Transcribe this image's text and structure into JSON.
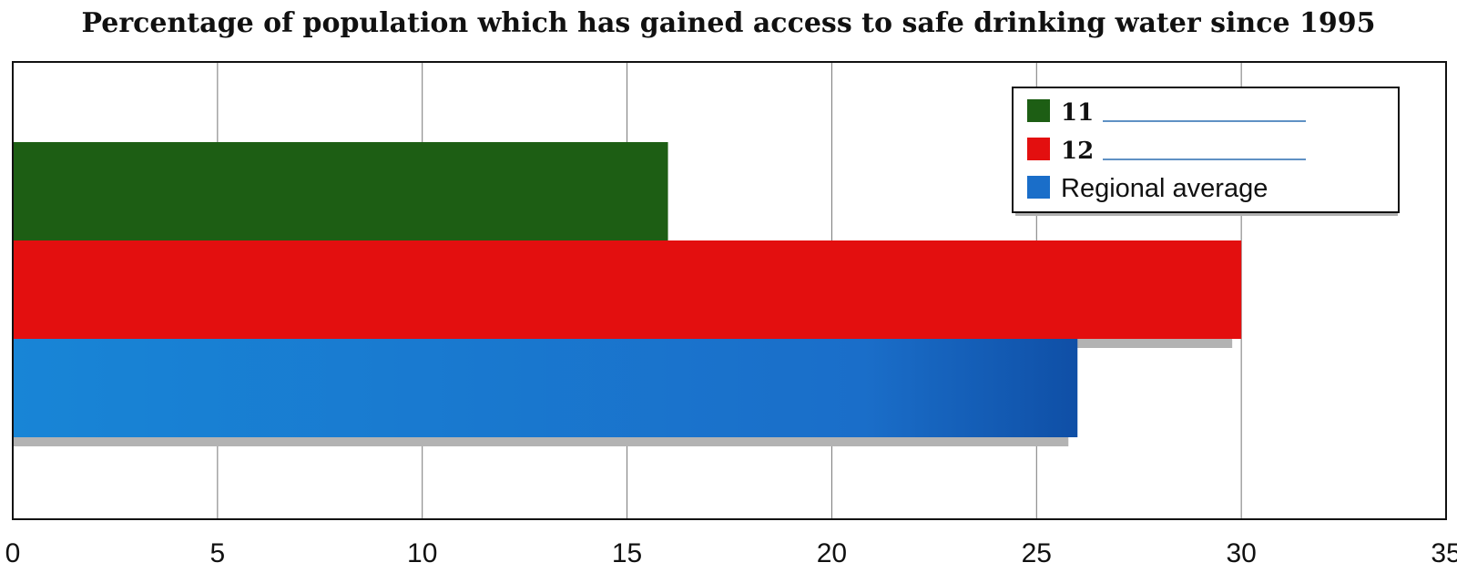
{
  "chart_data": {
    "type": "bar",
    "orientation": "horizontal",
    "title": "Percentage of population which has gained access to safe drinking water since 1995",
    "xlim": [
      0,
      35
    ],
    "xticks": [
      0,
      5,
      10,
      15,
      20,
      25,
      30,
      35
    ],
    "grid": "vertical",
    "legend_position": "top-right",
    "series": [
      {
        "name": "11",
        "value": 16,
        "color": "#1d5e14"
      },
      {
        "name": "12",
        "value": 30,
        "color": "#e30f0f"
      },
      {
        "name": "Regional average",
        "value": 26,
        "color": "#1a6ec9"
      }
    ]
  }
}
